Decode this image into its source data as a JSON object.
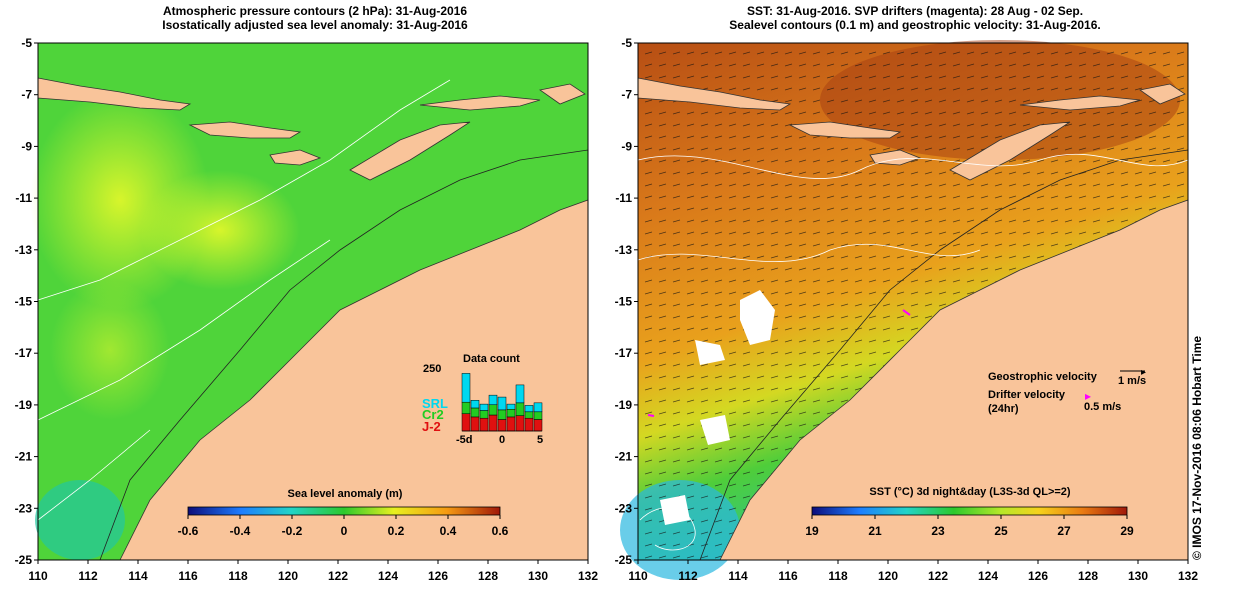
{
  "left_panel": {
    "title_line1": "Atmospheric pressure contours (2 hPa): 31-Aug-2016",
    "title_line2": "Isostatically adjusted sea level anomaly: 31-Aug-2016",
    "colorbar": {
      "label": "Sea level anomaly (m)",
      "ticks": [
        "-0.6",
        "-0.4",
        "-0.2",
        "0",
        "0.2",
        "0.4",
        "0.6"
      ]
    },
    "data_count": {
      "title": "Data count",
      "ymax_label": "250",
      "series_labels": [
        "SRL",
        "Cr2",
        "J-2"
      ],
      "series_colors": [
        "#00d8f0",
        "#22cc22",
        "#e01010"
      ],
      "x_tick_labels": [
        "-5d",
        "0",
        "5"
      ],
      "bars": [
        {
          "srl": 0.45,
          "cr2": 0.18,
          "j2": 0.27
        },
        {
          "srl": 0.12,
          "cr2": 0.14,
          "j2": 0.22
        },
        {
          "srl": 0.1,
          "cr2": 0.12,
          "j2": 0.2
        },
        {
          "srl": 0.15,
          "cr2": 0.16,
          "j2": 0.25
        },
        {
          "srl": 0.2,
          "cr2": 0.15,
          "j2": 0.18
        },
        {
          "srl": 0.08,
          "cr2": 0.12,
          "j2": 0.22
        },
        {
          "srl": 0.28,
          "cr2": 0.2,
          "j2": 0.24
        },
        {
          "srl": 0.1,
          "cr2": 0.1,
          "j2": 0.2
        },
        {
          "srl": 0.14,
          "cr2": 0.12,
          "j2": 0.18
        }
      ]
    }
  },
  "right_panel": {
    "title_line1": "SST: 31-Aug-2016. SVP drifters (magenta): 28 Aug - 02 Sep.",
    "title_line2": "Sealevel contours (0.1 m) and geostrophic velocity: 31-Aug-2016.",
    "colorbar": {
      "label": "SST (°C) 3d night&day (L3S-3d QL>=2)",
      "ticks": [
        "19",
        "21",
        "23",
        "25",
        "27",
        "29"
      ]
    },
    "legend": {
      "geo_label": "Geostrophic velocity",
      "geo_scale": "1 m/s",
      "drifter_label_1": "Drifter velocity",
      "drifter_label_2": "(24hr)",
      "drifter_scale": "0.5 m/s"
    }
  },
  "axes": {
    "y_ticks": [
      "-5",
      "-7",
      "-9",
      "-11",
      "-13",
      "-15",
      "-17",
      "-19",
      "-21",
      "-23",
      "-25"
    ],
    "x_ticks": [
      "110",
      "112",
      "114",
      "116",
      "118",
      "120",
      "122",
      "124",
      "126",
      "128",
      "130",
      "132"
    ]
  },
  "credit": "© IMOS 17-Nov-2016 08:06 Hobart Time",
  "colors": {
    "land": "#f9c49a",
    "ssla_green": "#4fd43a",
    "sst_orange": "#e08a1a"
  }
}
